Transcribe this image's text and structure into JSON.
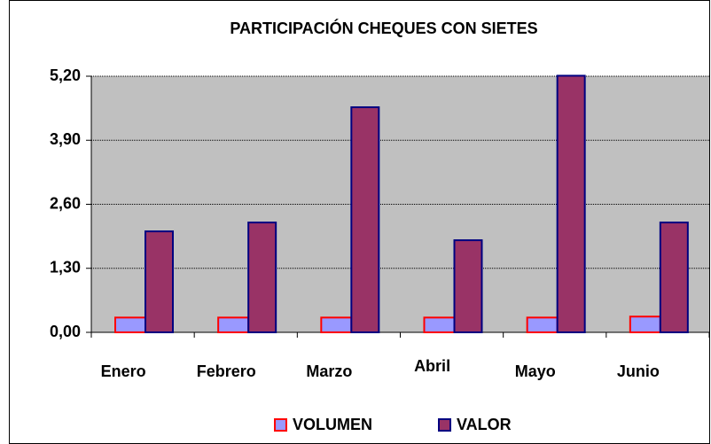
{
  "chart_data": {
    "type": "bar",
    "title": "PARTICIPACIÓN CHEQUES CON SIETES",
    "categories": [
      "Enero",
      "Febrero",
      "Marzo",
      "Abril",
      "Mayo",
      "Junio"
    ],
    "series": [
      {
        "name": "VOLUMEN",
        "color": "#9999ff",
        "edge": "#ff0000",
        "values": [
          0.3,
          0.3,
          0.3,
          0.3,
          0.3,
          0.32
        ]
      },
      {
        "name": "VALOR",
        "color": "#993366",
        "edge": "#000080",
        "values": [
          2.05,
          2.23,
          4.57,
          1.87,
          5.21,
          2.23
        ]
      }
    ],
    "ylim": [
      0,
      5.2
    ],
    "yticks": [
      {
        "value": 0,
        "label": "0,00"
      },
      {
        "value": 1.3,
        "label": "1,30"
      },
      {
        "value": 2.6,
        "label": "2,60"
      },
      {
        "value": 3.9,
        "label": "3,90"
      },
      {
        "value": 5.2,
        "label": "5,20"
      }
    ],
    "grid": true,
    "legend": "bottom"
  }
}
